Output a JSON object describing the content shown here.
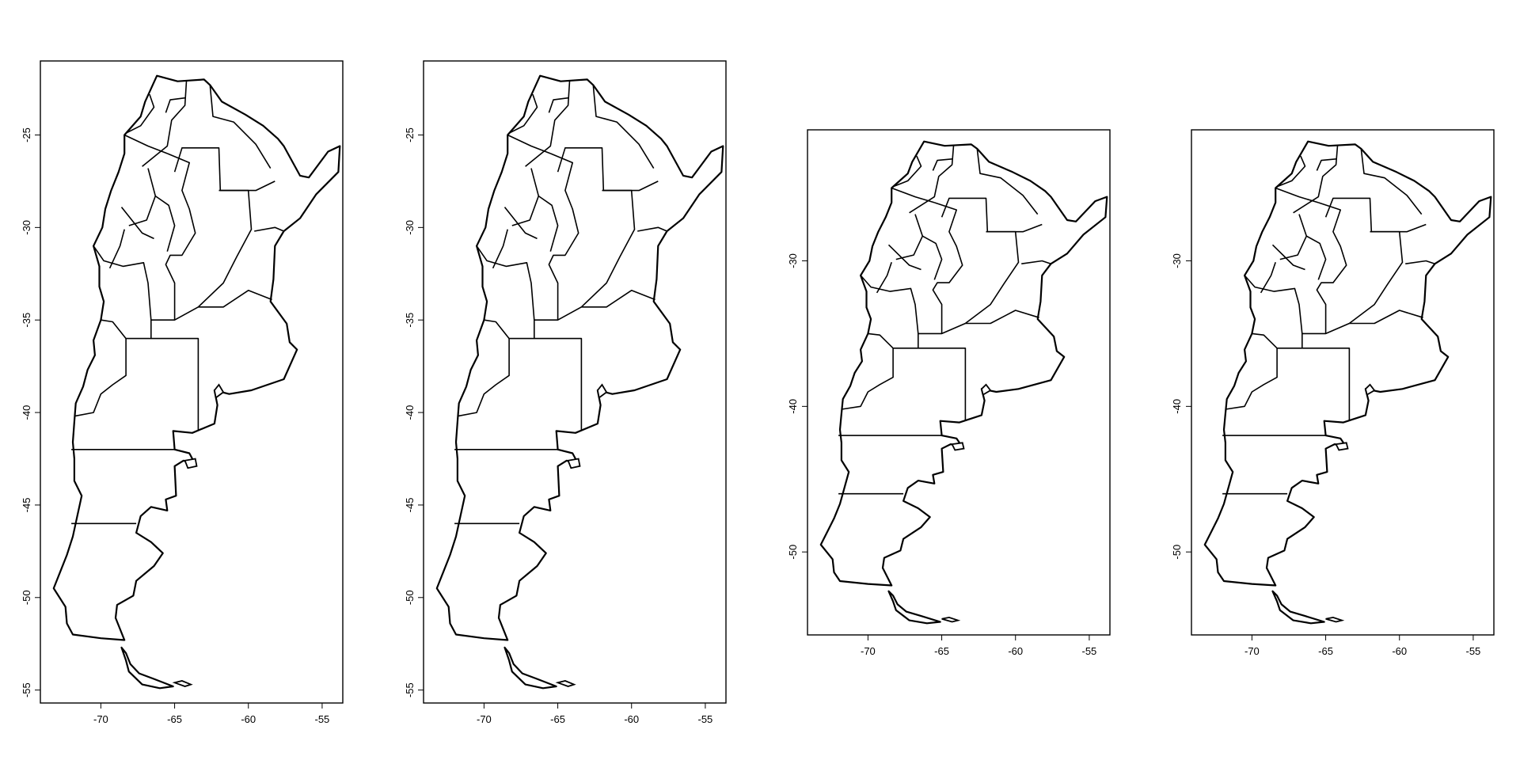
{
  "figure": {
    "line_color": "#000000",
    "background": "#ffffff"
  },
  "panels": [
    {
      "x_ticks": [
        -70,
        -65,
        -60,
        -55
      ],
      "y_ticks": [
        -25,
        -30,
        -35,
        -40,
        -45,
        -50,
        -55
      ],
      "x_range": [
        -74.1,
        -53.6
      ],
      "y_range": [
        -55.7,
        -21.0
      ]
    },
    {
      "x_ticks": [
        -70,
        -65,
        -60,
        -55
      ],
      "y_ticks": [
        -25,
        -30,
        -35,
        -40,
        -45,
        -50,
        -55
      ],
      "x_range": [
        -74.1,
        -53.6
      ],
      "y_range": [
        -55.7,
        -21.0
      ]
    },
    {
      "x_ticks": [
        -70,
        -65,
        -60,
        -55
      ],
      "y_ticks": [
        -30,
        -40,
        -50
      ],
      "x_range": [
        -74.1,
        -53.6
      ],
      "y_range": [
        -55.7,
        -21.0
      ]
    },
    {
      "x_ticks": [
        -70,
        -65,
        -60,
        -55
      ],
      "y_ticks": [
        -30,
        -40,
        -50
      ],
      "x_range": [
        -74.1,
        -53.6
      ],
      "y_range": [
        -55.7,
        -21.0
      ]
    }
  ],
  "map": {
    "outline": [
      [
        -66.2,
        -21.8
      ],
      [
        -64.8,
        -22.1
      ],
      [
        -63.0,
        -22.0
      ],
      [
        -62.6,
        -22.3
      ],
      [
        -61.8,
        -23.2
      ],
      [
        -60.2,
        -23.9
      ],
      [
        -59.0,
        -24.5
      ],
      [
        -58.0,
        -25.2
      ],
      [
        -57.6,
        -25.6
      ],
      [
        -56.5,
        -27.2
      ],
      [
        -55.9,
        -27.3
      ],
      [
        -54.6,
        -25.9
      ],
      [
        -53.8,
        -25.6
      ],
      [
        -53.9,
        -27.0
      ],
      [
        -55.4,
        -28.2
      ],
      [
        -56.5,
        -29.5
      ],
      [
        -57.6,
        -30.2
      ],
      [
        -58.2,
        -31.0
      ],
      [
        -58.3,
        -32.8
      ],
      [
        -58.5,
        -34.0
      ],
      [
        -57.4,
        -35.2
      ],
      [
        -57.2,
        -36.2
      ],
      [
        -56.7,
        -36.6
      ],
      [
        -57.6,
        -38.2
      ],
      [
        -59.8,
        -38.8
      ],
      [
        -61.3,
        -39.0
      ],
      [
        -62.3,
        -38.8
      ],
      [
        -62.1,
        -39.6
      ],
      [
        -62.3,
        -40.6
      ],
      [
        -63.8,
        -41.1
      ],
      [
        -65.1,
        -41.0
      ],
      [
        -65.0,
        -42.0
      ],
      [
        -64.0,
        -42.2
      ],
      [
        -63.6,
        -42.8
      ],
      [
        -64.4,
        -42.6
      ],
      [
        -65.0,
        -42.9
      ],
      [
        -64.9,
        -44.5
      ],
      [
        -65.6,
        -44.7
      ],
      [
        -65.5,
        -45.3
      ],
      [
        -66.6,
        -45.1
      ],
      [
        -67.3,
        -45.6
      ],
      [
        -67.6,
        -46.5
      ],
      [
        -66.6,
        -47.0
      ],
      [
        -65.8,
        -47.6
      ],
      [
        -66.4,
        -48.3
      ],
      [
        -67.6,
        -49.1
      ],
      [
        -67.8,
        -49.9
      ],
      [
        -68.9,
        -50.4
      ],
      [
        -69.0,
        -51.1
      ],
      [
        -68.4,
        -52.3
      ],
      [
        -70.0,
        -52.2
      ],
      [
        -71.9,
        -52.0
      ],
      [
        -72.3,
        -51.4
      ],
      [
        -72.4,
        -50.5
      ],
      [
        -73.2,
        -49.5
      ],
      [
        -72.7,
        -48.5
      ],
      [
        -72.3,
        -47.7
      ],
      [
        -71.9,
        -46.7
      ],
      [
        -71.6,
        -45.6
      ],
      [
        -71.3,
        -44.5
      ],
      [
        -71.8,
        -43.7
      ],
      [
        -71.8,
        -42.5
      ],
      [
        -71.9,
        -41.6
      ],
      [
        -71.8,
        -40.5
      ],
      [
        -71.7,
        -39.5
      ],
      [
        -71.2,
        -38.6
      ],
      [
        -70.9,
        -37.7
      ],
      [
        -70.4,
        -36.9
      ],
      [
        -70.5,
        -36.1
      ],
      [
        -70.0,
        -35.0
      ],
      [
        -69.8,
        -34.0
      ],
      [
        -70.1,
        -33.2
      ],
      [
        -70.1,
        -32.1
      ],
      [
        -70.5,
        -31.0
      ],
      [
        -69.9,
        -30.0
      ],
      [
        -69.7,
        -29.0
      ],
      [
        -69.3,
        -28.0
      ],
      [
        -68.8,
        -27.0
      ],
      [
        -68.4,
        -26.0
      ],
      [
        -68.4,
        -25.0
      ],
      [
        -67.3,
        -24.0
      ],
      [
        -67.0,
        -23.2
      ],
      [
        -66.2,
        -21.8
      ]
    ],
    "boundaries": [
      [
        [
          -72.0,
          -42.0
        ],
        [
          -65.0,
          -42.0
        ]
      ],
      [
        [
          -72.0,
          -46.0
        ],
        [
          -67.6,
          -46.0
        ]
      ],
      [
        [
          -68.3,
          -36.0
        ],
        [
          -63.4,
          -36.0
        ],
        [
          -63.4,
          -41.0
        ]
      ],
      [
        [
          -68.3,
          -36.0
        ],
        [
          -68.3,
          -38.0
        ],
        [
          -69.2,
          -38.5
        ],
        [
          -70.0,
          -39.0
        ],
        [
          -70.5,
          -40.0
        ],
        [
          -71.8,
          -40.2
        ]
      ],
      [
        [
          -63.4,
          -34.3
        ],
        [
          -61.7,
          -34.3
        ],
        [
          -60.0,
          -33.4
        ],
        [
          -58.4,
          -33.9
        ]
      ],
      [
        [
          -65.0,
          -35.0
        ],
        [
          -65.0,
          -33.0
        ],
        [
          -65.6,
          -32.0
        ],
        [
          -65.3,
          -31.5
        ],
        [
          -64.5,
          -31.5
        ],
        [
          -63.6,
          -30.3
        ],
        [
          -64.0,
          -29.0
        ],
        [
          -64.5,
          -28.0
        ],
        [
          -64.0,
          -26.5
        ],
        [
          -65.5,
          -26.0
        ]
      ],
      [
        [
          -63.4,
          -34.3
        ],
        [
          -65.0,
          -35.0
        ],
        [
          -66.6,
          -35.0
        ],
        [
          -66.8,
          -33.0
        ],
        [
          -67.1,
          -31.9
        ],
        [
          -68.5,
          -32.1
        ],
        [
          -69.8,
          -31.8
        ],
        [
          -70.5,
          -31.0
        ]
      ],
      [
        [
          -66.6,
          -35.0
        ],
        [
          -66.6,
          -36.0
        ]
      ],
      [
        [
          -68.3,
          -36.0
        ],
        [
          -69.2,
          -35.1
        ],
        [
          -70.0,
          -35.0
        ]
      ],
      [
        [
          -63.4,
          -34.3
        ],
        [
          -61.7,
          -33.0
        ],
        [
          -60.8,
          -31.6
        ],
        [
          -59.8,
          -30.1
        ],
        [
          -60.0,
          -28.0
        ],
        [
          -61.9,
          -28.0
        ],
        [
          -62.0,
          -25.7
        ],
        [
          -64.5,
          -25.7
        ],
        [
          -65.0,
          -27.0
        ]
      ],
      [
        [
          -62.0,
          -28.0
        ],
        [
          -59.5,
          -28.0
        ],
        [
          -58.2,
          -27.5
        ]
      ],
      [
        [
          -59.6,
          -30.2
        ],
        [
          -58.2,
          -30.0
        ],
        [
          -57.6,
          -30.2
        ]
      ],
      [
        [
          -64.2,
          -22.1
        ],
        [
          -64.3,
          -23.4
        ],
        [
          -65.2,
          -24.2
        ],
        [
          -65.5,
          -25.6
        ],
        [
          -67.2,
          -26.7
        ]
      ],
      [
        [
          -62.6,
          -22.3
        ],
        [
          -62.4,
          -24.0
        ],
        [
          -61.0,
          -24.3
        ],
        [
          -59.5,
          -25.5
        ],
        [
          -58.5,
          -26.8
        ]
      ],
      [
        [
          -68.4,
          -25.0
        ],
        [
          -66.8,
          -25.6
        ],
        [
          -65.5,
          -26.0
        ]
      ],
      [
        [
          -66.8,
          -26.8
        ],
        [
          -66.3,
          -28.3
        ],
        [
          -66.9,
          -29.6
        ],
        [
          -68.1,
          -29.9
        ]
      ],
      [
        [
          -66.3,
          -28.3
        ],
        [
          -65.4,
          -28.8
        ],
        [
          -65.0,
          -29.9
        ],
        [
          -65.5,
          -31.3
        ]
      ],
      [
        [
          -68.6,
          -28.9
        ],
        [
          -67.2,
          -30.3
        ],
        [
          -66.4,
          -30.6
        ]
      ],
      [
        [
          -69.4,
          -32.2
        ],
        [
          -68.7,
          -31.0
        ],
        [
          -68.4,
          -30.1
        ]
      ],
      [
        [
          -66.7,
          -22.8
        ],
        [
          -66.4,
          -23.5
        ],
        [
          -67.3,
          -24.5
        ],
        [
          -68.3,
          -24.9
        ]
      ],
      [
        [
          -64.3,
          -23.0
        ],
        [
          -65.3,
          -23.1
        ],
        [
          -65.6,
          -23.8
        ]
      ]
    ],
    "islands": [
      [
        [
          -65.0,
          -54.6
        ],
        [
          -64.3,
          -54.8
        ],
        [
          -63.9,
          -54.7
        ],
        [
          -64.5,
          -54.5
        ],
        [
          -65.0,
          -54.6
        ]
      ],
      [
        [
          -62.0,
          -38.5
        ],
        [
          -61.7,
          -38.9
        ],
        [
          -62.2,
          -39.2
        ],
        [
          -62.3,
          -38.8
        ],
        [
          -62.0,
          -38.5
        ]
      ],
      [
        [
          -64.3,
          -42.6
        ],
        [
          -63.6,
          -42.5
        ],
        [
          -63.5,
          -42.9
        ],
        [
          -64.1,
          -43.0
        ],
        [
          -64.3,
          -42.6
        ]
      ]
    ],
    "tierra_del_fuego": [
      [
        -68.6,
        -52.7
      ],
      [
        -68.3,
        -53.4
      ],
      [
        -68.1,
        -54.0
      ],
      [
        -67.2,
        -54.7
      ],
      [
        -66.0,
        -54.9
      ],
      [
        -65.1,
        -54.8
      ],
      [
        -66.4,
        -54.4
      ],
      [
        -67.4,
        -54.1
      ],
      [
        -68.0,
        -53.6
      ],
      [
        -68.3,
        -53.0
      ],
      [
        -68.6,
        -52.7
      ]
    ]
  }
}
